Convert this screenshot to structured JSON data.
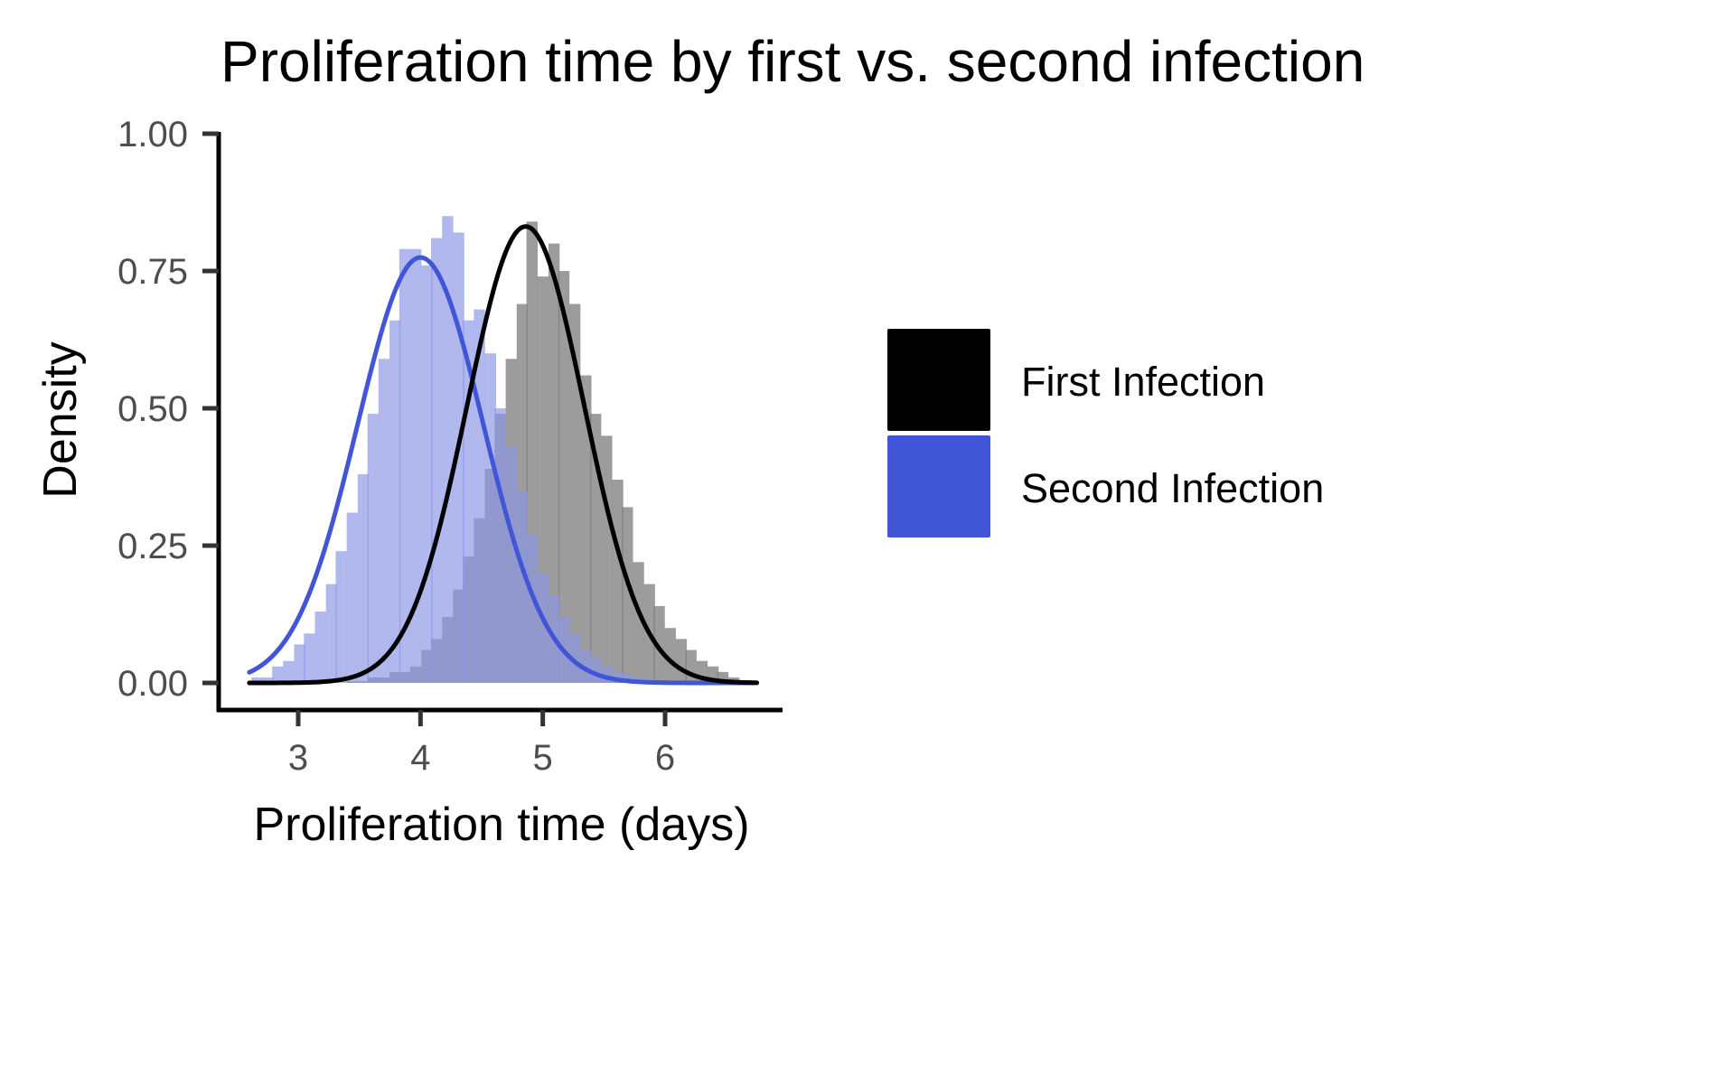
{
  "chart_data": {
    "type": "histogram",
    "title": "Proliferation time by first vs. second infection",
    "xlabel": "Proliferation time (days)",
    "ylabel": "Density",
    "xlim": [
      2.6,
      6.8
    ],
    "ylim": [
      0,
      1
    ],
    "x_ticks": [
      3,
      4,
      5,
      6
    ],
    "x_tick_labels": [
      "3",
      "4",
      "5",
      "6"
    ],
    "y_ticks": [
      0,
      0.25,
      0.5,
      0.75,
      1
    ],
    "y_tick_labels": [
      "0.00",
      "0.25",
      "0.50",
      "0.75",
      "1.00"
    ],
    "grid": false,
    "legend_position": "right",
    "bin_width": 0.087,
    "series": [
      {
        "name": "First Infection",
        "color": "#000000",
        "fill_color": "#808080",
        "curve": "normal",
        "mean": 4.86,
        "sd": 0.48,
        "bins": [
          {
            "x": 3.44,
            "density": 0.003
          },
          {
            "x": 3.53,
            "density": 0.003
          },
          {
            "x": 3.61,
            "density": 0.01
          },
          {
            "x": 3.7,
            "density": 0.01
          },
          {
            "x": 3.79,
            "density": 0.02
          },
          {
            "x": 3.87,
            "density": 0.02
          },
          {
            "x": 3.96,
            "density": 0.03
          },
          {
            "x": 4.05,
            "density": 0.06
          },
          {
            "x": 4.13,
            "density": 0.08
          },
          {
            "x": 4.22,
            "density": 0.12
          },
          {
            "x": 4.31,
            "density": 0.17
          },
          {
            "x": 4.39,
            "density": 0.23
          },
          {
            "x": 4.48,
            "density": 0.3
          },
          {
            "x": 4.57,
            "density": 0.39
          },
          {
            "x": 4.65,
            "density": 0.49
          },
          {
            "x": 4.74,
            "density": 0.59
          },
          {
            "x": 4.83,
            "density": 0.69
          },
          {
            "x": 4.91,
            "density": 0.84
          },
          {
            "x": 5.0,
            "density": 0.74
          },
          {
            "x": 5.09,
            "density": 0.8
          },
          {
            "x": 5.17,
            "density": 0.75
          },
          {
            "x": 5.26,
            "density": 0.69
          },
          {
            "x": 5.35,
            "density": 0.56
          },
          {
            "x": 5.43,
            "density": 0.49
          },
          {
            "x": 5.52,
            "density": 0.45
          },
          {
            "x": 5.61,
            "density": 0.37
          },
          {
            "x": 5.69,
            "density": 0.32
          },
          {
            "x": 5.78,
            "density": 0.22
          },
          {
            "x": 5.87,
            "density": 0.18
          },
          {
            "x": 5.95,
            "density": 0.14
          },
          {
            "x": 6.04,
            "density": 0.1
          },
          {
            "x": 6.13,
            "density": 0.08
          },
          {
            "x": 6.21,
            "density": 0.06
          },
          {
            "x": 6.3,
            "density": 0.04
          },
          {
            "x": 6.39,
            "density": 0.03
          },
          {
            "x": 6.47,
            "density": 0.02
          },
          {
            "x": 6.56,
            "density": 0.01
          },
          {
            "x": 6.65,
            "density": 0.005
          }
        ]
      },
      {
        "name": "Second Infection",
        "color": "#4155d7",
        "fill_color": "#8c97e6",
        "curve": "normal",
        "mean": 4.0,
        "sd": 0.515,
        "bins": [
          {
            "x": 2.66,
            "density": 0.01
          },
          {
            "x": 2.75,
            "density": 0.01
          },
          {
            "x": 2.83,
            "density": 0.03
          },
          {
            "x": 2.92,
            "density": 0.04
          },
          {
            "x": 3.01,
            "density": 0.07
          },
          {
            "x": 3.09,
            "density": 0.09
          },
          {
            "x": 3.18,
            "density": 0.13
          },
          {
            "x": 3.27,
            "density": 0.18
          },
          {
            "x": 3.35,
            "density": 0.24
          },
          {
            "x": 3.44,
            "density": 0.31
          },
          {
            "x": 3.53,
            "density": 0.38
          },
          {
            "x": 3.61,
            "density": 0.49
          },
          {
            "x": 3.7,
            "density": 0.59
          },
          {
            "x": 3.79,
            "density": 0.66
          },
          {
            "x": 3.87,
            "density": 0.79
          },
          {
            "x": 3.96,
            "density": 0.79
          },
          {
            "x": 4.05,
            "density": 0.76
          },
          {
            "x": 4.13,
            "density": 0.81
          },
          {
            "x": 4.22,
            "density": 0.85
          },
          {
            "x": 4.31,
            "density": 0.82
          },
          {
            "x": 4.39,
            "density": 0.66
          },
          {
            "x": 4.48,
            "density": 0.68
          },
          {
            "x": 4.57,
            "density": 0.6
          },
          {
            "x": 4.65,
            "density": 0.5
          },
          {
            "x": 4.74,
            "density": 0.43
          },
          {
            "x": 4.83,
            "density": 0.35
          },
          {
            "x": 4.91,
            "density": 0.27
          },
          {
            "x": 5.0,
            "density": 0.2
          },
          {
            "x": 5.09,
            "density": 0.16
          },
          {
            "x": 5.17,
            "density": 0.12
          },
          {
            "x": 5.26,
            "density": 0.09
          },
          {
            "x": 5.35,
            "density": 0.06
          },
          {
            "x": 5.43,
            "density": 0.045
          },
          {
            "x": 5.52,
            "density": 0.03
          },
          {
            "x": 5.61,
            "density": 0.02
          },
          {
            "x": 5.69,
            "density": 0.015
          },
          {
            "x": 5.78,
            "density": 0.01
          },
          {
            "x": 5.87,
            "density": 0.008
          },
          {
            "x": 5.95,
            "density": 0.005
          },
          {
            "x": 6.04,
            "density": 0.004
          }
        ]
      }
    ]
  }
}
